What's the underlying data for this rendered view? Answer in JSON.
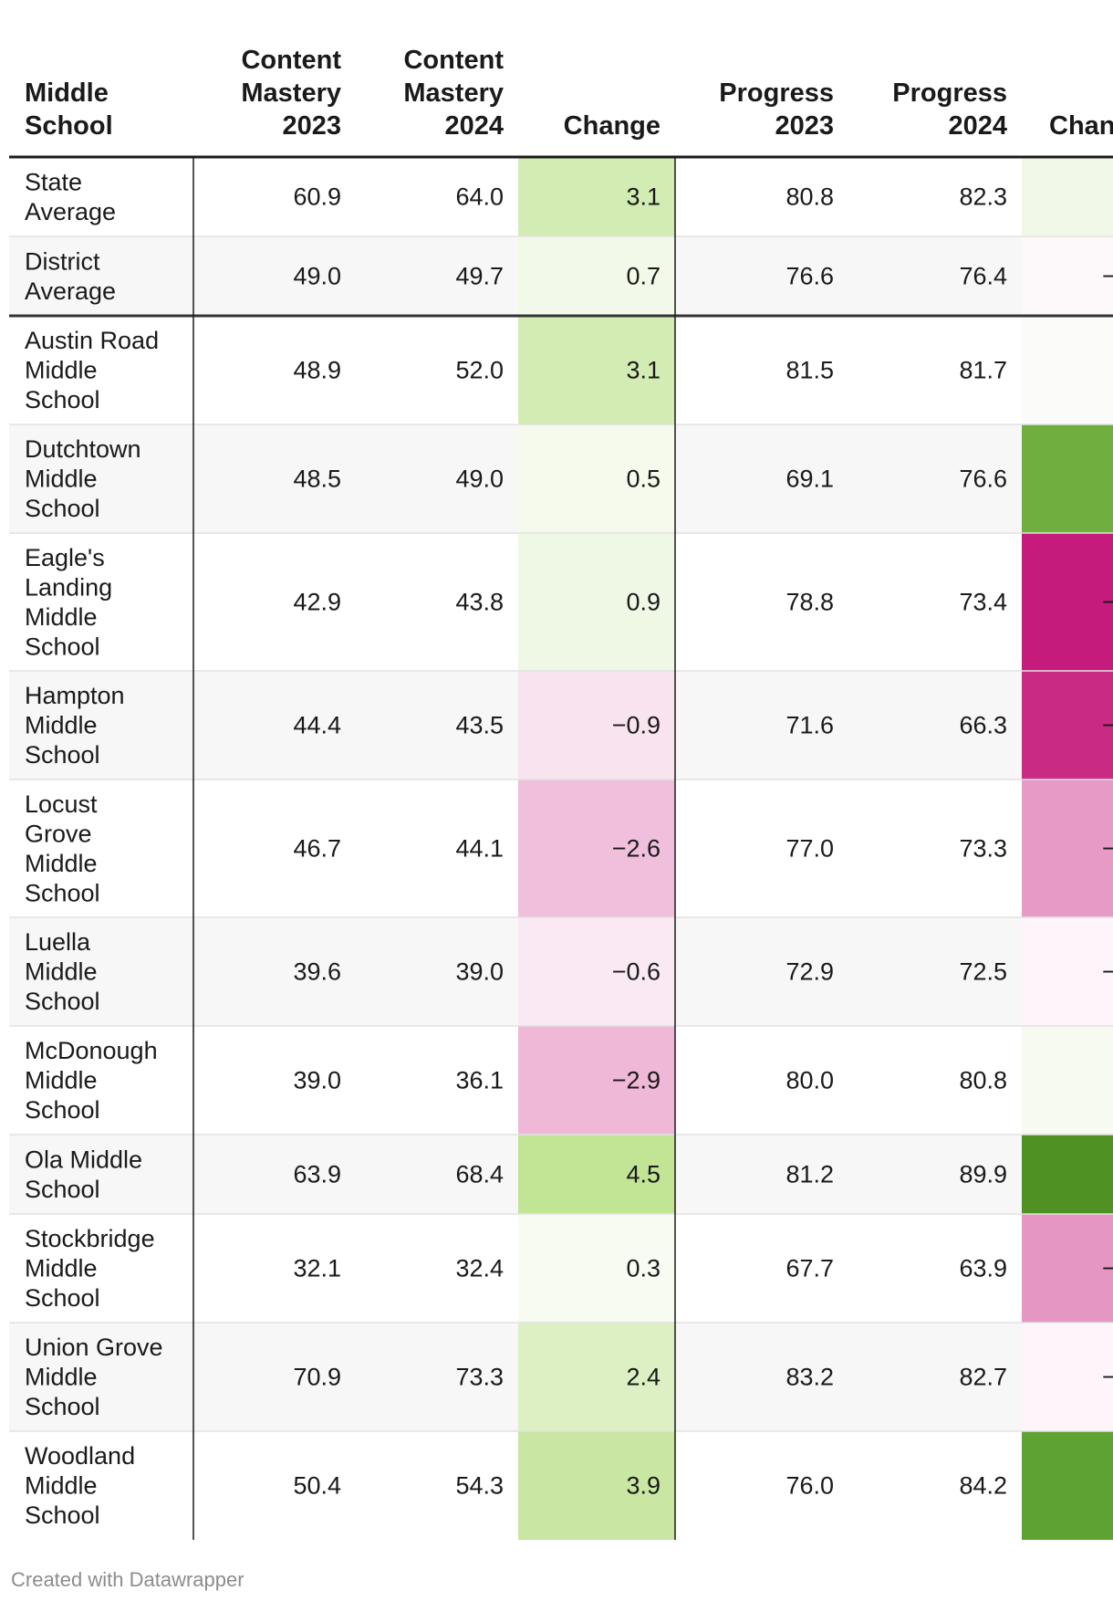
{
  "chart_data": {
    "type": "table",
    "columns": [
      "Middle School",
      "Content Mastery 2023",
      "Content Mastery 2024",
      "Change",
      "Progress 2023",
      "Progress 2024",
      "Chan"
    ],
    "header_lines": [
      [
        "Middle",
        "School"
      ],
      [
        "Content",
        "Mastery",
        "2023"
      ],
      [
        "Content",
        "Mastery",
        "2024"
      ],
      [
        "Change"
      ],
      [
        "Progress",
        "2023"
      ],
      [
        "Progress",
        "2024"
      ],
      [
        "Chan"
      ]
    ],
    "rows": [
      {
        "name_lines": [
          "State",
          "Average"
        ],
        "cm2023": "60.9",
        "cm2024": "64.0",
        "change": "3.1",
        "p2023": "80.8",
        "p2024": "82.3",
        "pchange": "",
        "pcolor": "#f1f8e8"
      },
      {
        "name_lines": [
          "District",
          "Average"
        ],
        "cm2023": "49.0",
        "cm2024": "49.7",
        "change": "0.7",
        "p2023": "76.6",
        "p2024": "76.4",
        "pchange": "−",
        "pcolor": "#fdf8fa"
      },
      {
        "name_lines": [
          "Austin Road",
          "Middle",
          "School"
        ],
        "cm2023": "48.9",
        "cm2024": "52.0",
        "change": "3.1",
        "p2023": "81.5",
        "p2024": "81.7",
        "pchange": "",
        "pcolor": "#fbfcf9"
      },
      {
        "name_lines": [
          "Dutchtown",
          "Middle",
          "School"
        ],
        "cm2023": "48.5",
        "cm2024": "49.0",
        "change": "0.5",
        "p2023": "69.1",
        "p2024": "76.6",
        "pchange": "",
        "pcolor": "#6fae3f"
      },
      {
        "name_lines": [
          "Eagle's",
          "Landing",
          "Middle",
          "School"
        ],
        "cm2023": "42.9",
        "cm2024": "43.8",
        "change": "0.9",
        "p2023": "78.8",
        "p2024": "73.4",
        "pchange": "−",
        "pcolor": "#c41b7c"
      },
      {
        "name_lines": [
          "Hampton",
          "Middle",
          "School"
        ],
        "cm2023": "44.4",
        "cm2024": "43.5",
        "change": "−0.9",
        "p2023": "71.6",
        "p2024": "66.3",
        "pchange": "−",
        "pcolor": "#c92a83"
      },
      {
        "name_lines": [
          "Locust",
          "Grove",
          "Middle",
          "School"
        ],
        "cm2023": "46.7",
        "cm2024": "44.1",
        "change": "−2.6",
        "p2023": "77.0",
        "p2024": "73.3",
        "pchange": "−",
        "pcolor": "#e79ac6"
      },
      {
        "name_lines": [
          "Luella",
          "Middle",
          "School"
        ],
        "cm2023": "39.6",
        "cm2024": "39.0",
        "change": "−0.6",
        "p2023": "72.9",
        "p2024": "72.5",
        "pchange": "−",
        "pcolor": "#fdf5fa"
      },
      {
        "name_lines": [
          "McDonough",
          "Middle",
          "School"
        ],
        "cm2023": "39.0",
        "cm2024": "36.1",
        "change": "−2.9",
        "p2023": "80.0",
        "p2024": "80.8",
        "pchange": "",
        "pcolor": "#f6faf1"
      },
      {
        "name_lines": [
          "Ola Middle",
          "School"
        ],
        "cm2023": "63.9",
        "cm2024": "68.4",
        "change": "4.5",
        "p2023": "81.2",
        "p2024": "89.9",
        "pchange": "",
        "pcolor": "#4f9123"
      },
      {
        "name_lines": [
          "Stockbridge",
          "Middle",
          "School"
        ],
        "cm2023": "32.1",
        "cm2024": "32.4",
        "change": "0.3",
        "p2023": "67.7",
        "p2024": "63.9",
        "pchange": "−",
        "pcolor": "#e596c2"
      },
      {
        "name_lines": [
          "Union Grove",
          "Middle",
          "School"
        ],
        "cm2023": "70.9",
        "cm2024": "73.3",
        "change": "2.4",
        "p2023": "83.2",
        "p2024": "82.7",
        "pchange": "−",
        "pcolor": "#fdf5fa"
      },
      {
        "name_lines": [
          "Woodland",
          "Middle",
          "School"
        ],
        "cm2023": "50.4",
        "cm2024": "54.3",
        "change": "3.9",
        "p2023": "76.0",
        "p2024": "84.2",
        "pchange": "",
        "pcolor": "#5da232"
      }
    ]
  },
  "footer": "Created with Datawrapper"
}
